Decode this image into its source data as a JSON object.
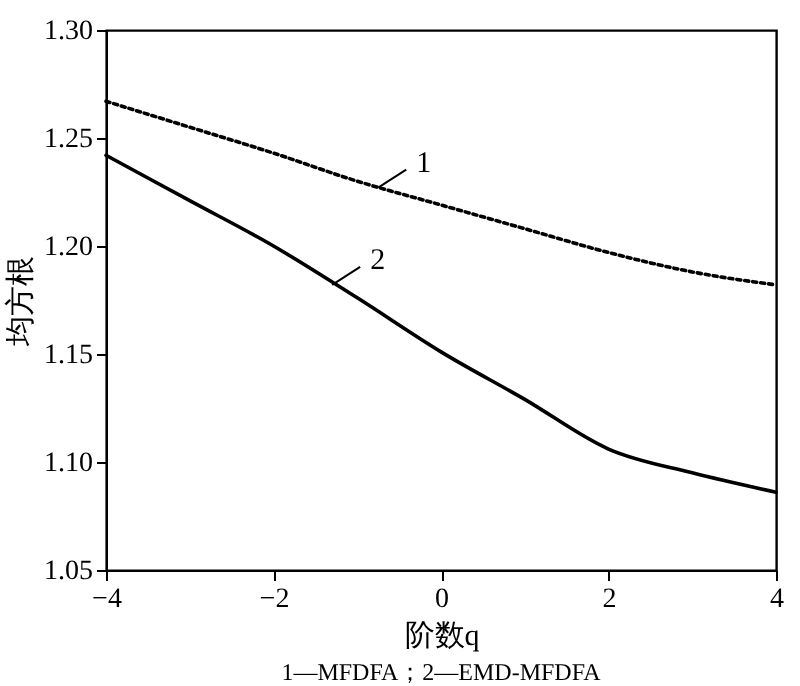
{
  "chart_data": {
    "type": "line",
    "xlabel": "阶数q",
    "ylabel": "均方根",
    "xlim": [
      -4,
      4
    ],
    "xticks": [
      {
        "value": -4,
        "label": "−4"
      },
      {
        "value": -2,
        "label": "−2"
      },
      0,
      2,
      4
    ],
    "ylim": [
      1.05,
      1.3
    ],
    "yticks": [
      {
        "value": 1.05,
        "label": "1.05"
      },
      {
        "value": 1.1,
        "label": "1.10"
      },
      {
        "value": 1.15,
        "label": "1.15"
      },
      {
        "value": 1.2,
        "label": "1.20"
      },
      {
        "value": 1.25,
        "label": "1.25"
      },
      {
        "value": 1.3,
        "label": "1.30"
      }
    ],
    "x": [
      -4,
      -3,
      -2,
      -1,
      0,
      1,
      2,
      3,
      4
    ],
    "series": [
      {
        "color": "#000000",
        "line_style": "dotted",
        "values": [
          1.267,
          1.255,
          1.243,
          1.23,
          1.219,
          1.208,
          1.197,
          1.188,
          1.182
        ]
      },
      {
        "color": "#000000",
        "line_style": "solid",
        "values": [
          1.242,
          1.221,
          1.2,
          1.176,
          1.151,
          1.129,
          1.106,
          1.095,
          1.086
        ]
      }
    ],
    "annotations": [
      {
        "text": "1",
        "x": -0.75,
        "y": 1.227
      },
      {
        "text": "2",
        "x": -1.3,
        "y": 1.182
      },
      "1—MFDFA；2—EMD-MFDFA"
    ]
  }
}
